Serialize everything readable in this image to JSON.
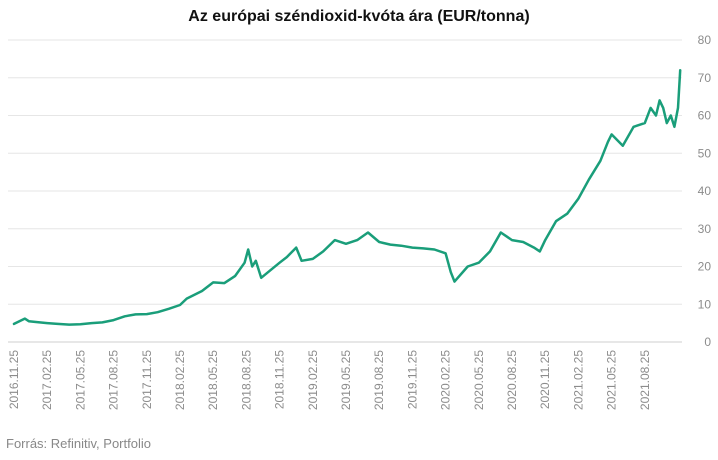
{
  "chart_data": {
    "type": "line",
    "title": "Az európai széndioxid-kvóta ára (EUR/tonna)",
    "xlabel": "",
    "ylabel": "",
    "ylim": [
      0,
      80
    ],
    "yticks": [
      "0",
      "10",
      "20",
      "30",
      "40",
      "50",
      "60",
      "70",
      "80"
    ],
    "xticks": [
      "2016.11.25",
      "2017.02.25",
      "2017.05.25",
      "2017.08.25",
      "2017.11.25",
      "2018.02.25",
      "2018.05.25",
      "2018.08.25",
      "2018.11.25",
      "2019.02.25",
      "2019.05.25",
      "2019.08.25",
      "2019.11.25",
      "2020.02.25",
      "2020.05.25",
      "2020.08.25",
      "2020.11.25",
      "2021.02.25",
      "2021.05.25",
      "2021.08.25"
    ],
    "grid": true,
    "y_axis_position": "right",
    "line_color": "#1a9e7a",
    "series": [
      {
        "x": [
          "2016-11-25",
          "2016-12-25",
          "2017-01-05",
          "2017-01-25",
          "2017-02-25",
          "2017-03-25",
          "2017-04-25",
          "2017-05-25",
          "2017-06-25",
          "2017-07-25",
          "2017-08-25",
          "2017-09-25",
          "2017-10-25",
          "2017-11-25",
          "2017-12-25",
          "2018-01-25",
          "2018-02-25",
          "2018-03-15",
          "2018-04-25",
          "2018-05-25",
          "2018-06-25",
          "2018-07-25",
          "2018-08-20",
          "2018-08-30",
          "2018-09-10",
          "2018-09-20",
          "2018-10-05",
          "2018-11-25",
          "2018-12-15",
          "2019-01-10",
          "2019-01-25",
          "2019-02-25",
          "2019-03-25",
          "2019-04-25",
          "2019-05-25",
          "2019-06-25",
          "2019-07-25",
          "2019-08-25",
          "2019-09-25",
          "2019-10-25",
          "2019-11-25",
          "2019-12-25",
          "2020-01-25",
          "2020-02-25",
          "2020-03-10",
          "2020-03-20",
          "2020-04-25",
          "2020-05-25",
          "2020-06-25",
          "2020-07-25",
          "2020-08-25",
          "2020-09-25",
          "2020-10-25",
          "2020-11-10",
          "2020-11-25",
          "2020-12-25",
          "2021-01-25",
          "2021-02-25",
          "2021-03-25",
          "2021-04-25",
          "2021-05-15",
          "2021-05-25",
          "2021-06-25",
          "2021-07-25",
          "2021-08-25",
          "2021-09-10",
          "2021-09-25",
          "2021-10-05",
          "2021-10-15",
          "2021-10-25",
          "2021-11-05",
          "2021-11-15",
          "2021-11-25",
          "2021-12-01"
        ],
        "values": [
          4.8,
          6.2,
          5.5,
          5.3,
          5.0,
          4.8,
          4.6,
          4.7,
          5.0,
          5.2,
          5.8,
          6.8,
          7.3,
          7.4,
          7.9,
          8.8,
          9.8,
          11.5,
          13.5,
          15.8,
          15.6,
          17.5,
          21.0,
          24.5,
          20.0,
          21.5,
          17.0,
          21.0,
          22.5,
          25.0,
          21.5,
          22.0,
          24.0,
          27.0,
          26.0,
          27.0,
          29.0,
          26.5,
          25.8,
          25.5,
          25.0,
          24.8,
          24.5,
          23.5,
          18.5,
          16.0,
          20.0,
          21.0,
          24.0,
          29.0,
          27.0,
          26.5,
          25.0,
          24.0,
          27.0,
          32.0,
          34.0,
          38.0,
          43.0,
          48.0,
          53.0,
          55.0,
          52.0,
          57.0,
          58.0,
          62.0,
          60.0,
          64.0,
          62.0,
          58.0,
          60.0,
          57.0,
          62.0,
          72.0
        ]
      }
    ]
  },
  "source": "Forrás: Refinitiv, Portfolio"
}
